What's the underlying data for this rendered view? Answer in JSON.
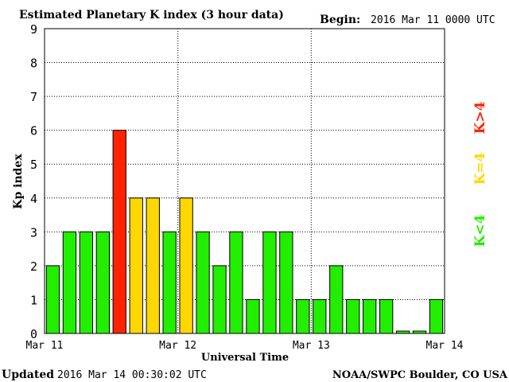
{
  "title": "Estimated Planetary K index (3 hour data)",
  "begin_label": "Begin:",
  "begin_value": "2016 Mar 11 0000 UTC",
  "footer_left_label": "Updated",
  "footer_left_value": "2016 Mar 14 00:30:02 UTC",
  "footer_right": "NOAA/SWPC Boulder, CO USA",
  "legend": {
    "gt4": "K>4",
    "eq4": "K=4",
    "lt4": "K<4"
  },
  "colors": {
    "lt4": "#22ee00",
    "eq4": "#ffd700",
    "gt4": "#ff2200",
    "border": "#000000",
    "grid": "#000000"
  },
  "chart_data": {
    "type": "bar",
    "ylabel": "Kp index",
    "xlabel": "Universal Time",
    "ylim": [
      0,
      9
    ],
    "yticks": [
      "0",
      "1",
      "2",
      "3",
      "4",
      "5",
      "6",
      "7",
      "8",
      "9"
    ],
    "xticks": [
      "Mar 11",
      "Mar 12",
      "Mar 13",
      "Mar 14"
    ],
    "grid": true,
    "x_start": "2016-03-11T00:00Z",
    "x_end": "2016-03-14T00:00Z",
    "bar_interval_hours": 3,
    "values": [
      2,
      3,
      3,
      3,
      6,
      4,
      4,
      3,
      4,
      3,
      2,
      3,
      1,
      3,
      3,
      1,
      1,
      2,
      1,
      1,
      1,
      0.07,
      0.07,
      1
    ]
  }
}
